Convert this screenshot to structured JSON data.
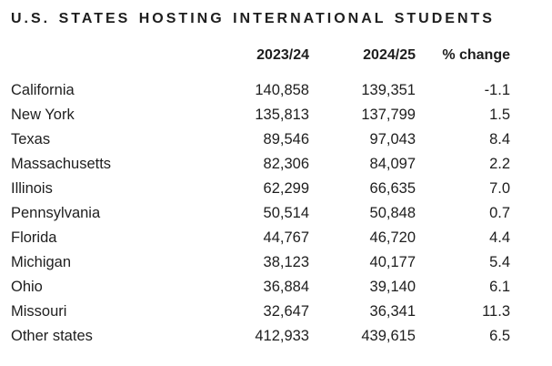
{
  "chart_data": {
    "type": "table",
    "title": "U.S. STATES HOSTING INTERNATIONAL STUDENTS",
    "columns": {
      "state": "",
      "y1": "2023/24",
      "y2": "2024/25",
      "pct": "% change"
    },
    "rows": [
      {
        "state": "California",
        "y1": "140,858",
        "y2": "139,351",
        "pct": "-1.1"
      },
      {
        "state": "New York",
        "y1": "135,813",
        "y2": "137,799",
        "pct": "1.5"
      },
      {
        "state": "Texas",
        "y1": "89,546",
        "y2": "97,043",
        "pct": "8.4"
      },
      {
        "state": "Massachusetts",
        "y1": "82,306",
        "y2": "84,097",
        "pct": "2.2"
      },
      {
        "state": "Illinois",
        "y1": "62,299",
        "y2": "66,635",
        "pct": "7.0"
      },
      {
        "state": "Pennsylvania",
        "y1": "50,514",
        "y2": "50,848",
        "pct": "0.7"
      },
      {
        "state": "Florida",
        "y1": "44,767",
        "y2": "46,720",
        "pct": "4.4"
      },
      {
        "state": "Michigan",
        "y1": "38,123",
        "y2": "40,177",
        "pct": "5.4"
      },
      {
        "state": "Ohio",
        "y1": "36,884",
        "y2": "39,140",
        "pct": "6.1"
      },
      {
        "state": "Missouri",
        "y1": "32,647",
        "y2": "36,341",
        "pct": "11.3"
      },
      {
        "state": "Other states",
        "y1": "412,933",
        "y2": "439,615",
        "pct": "6.5"
      }
    ],
    "layout": {
      "legend": "none",
      "grid": "off",
      "value_alignment": "right"
    },
    "colors": {
      "text": "#1e1e1e",
      "background": "#ffffff"
    }
  }
}
